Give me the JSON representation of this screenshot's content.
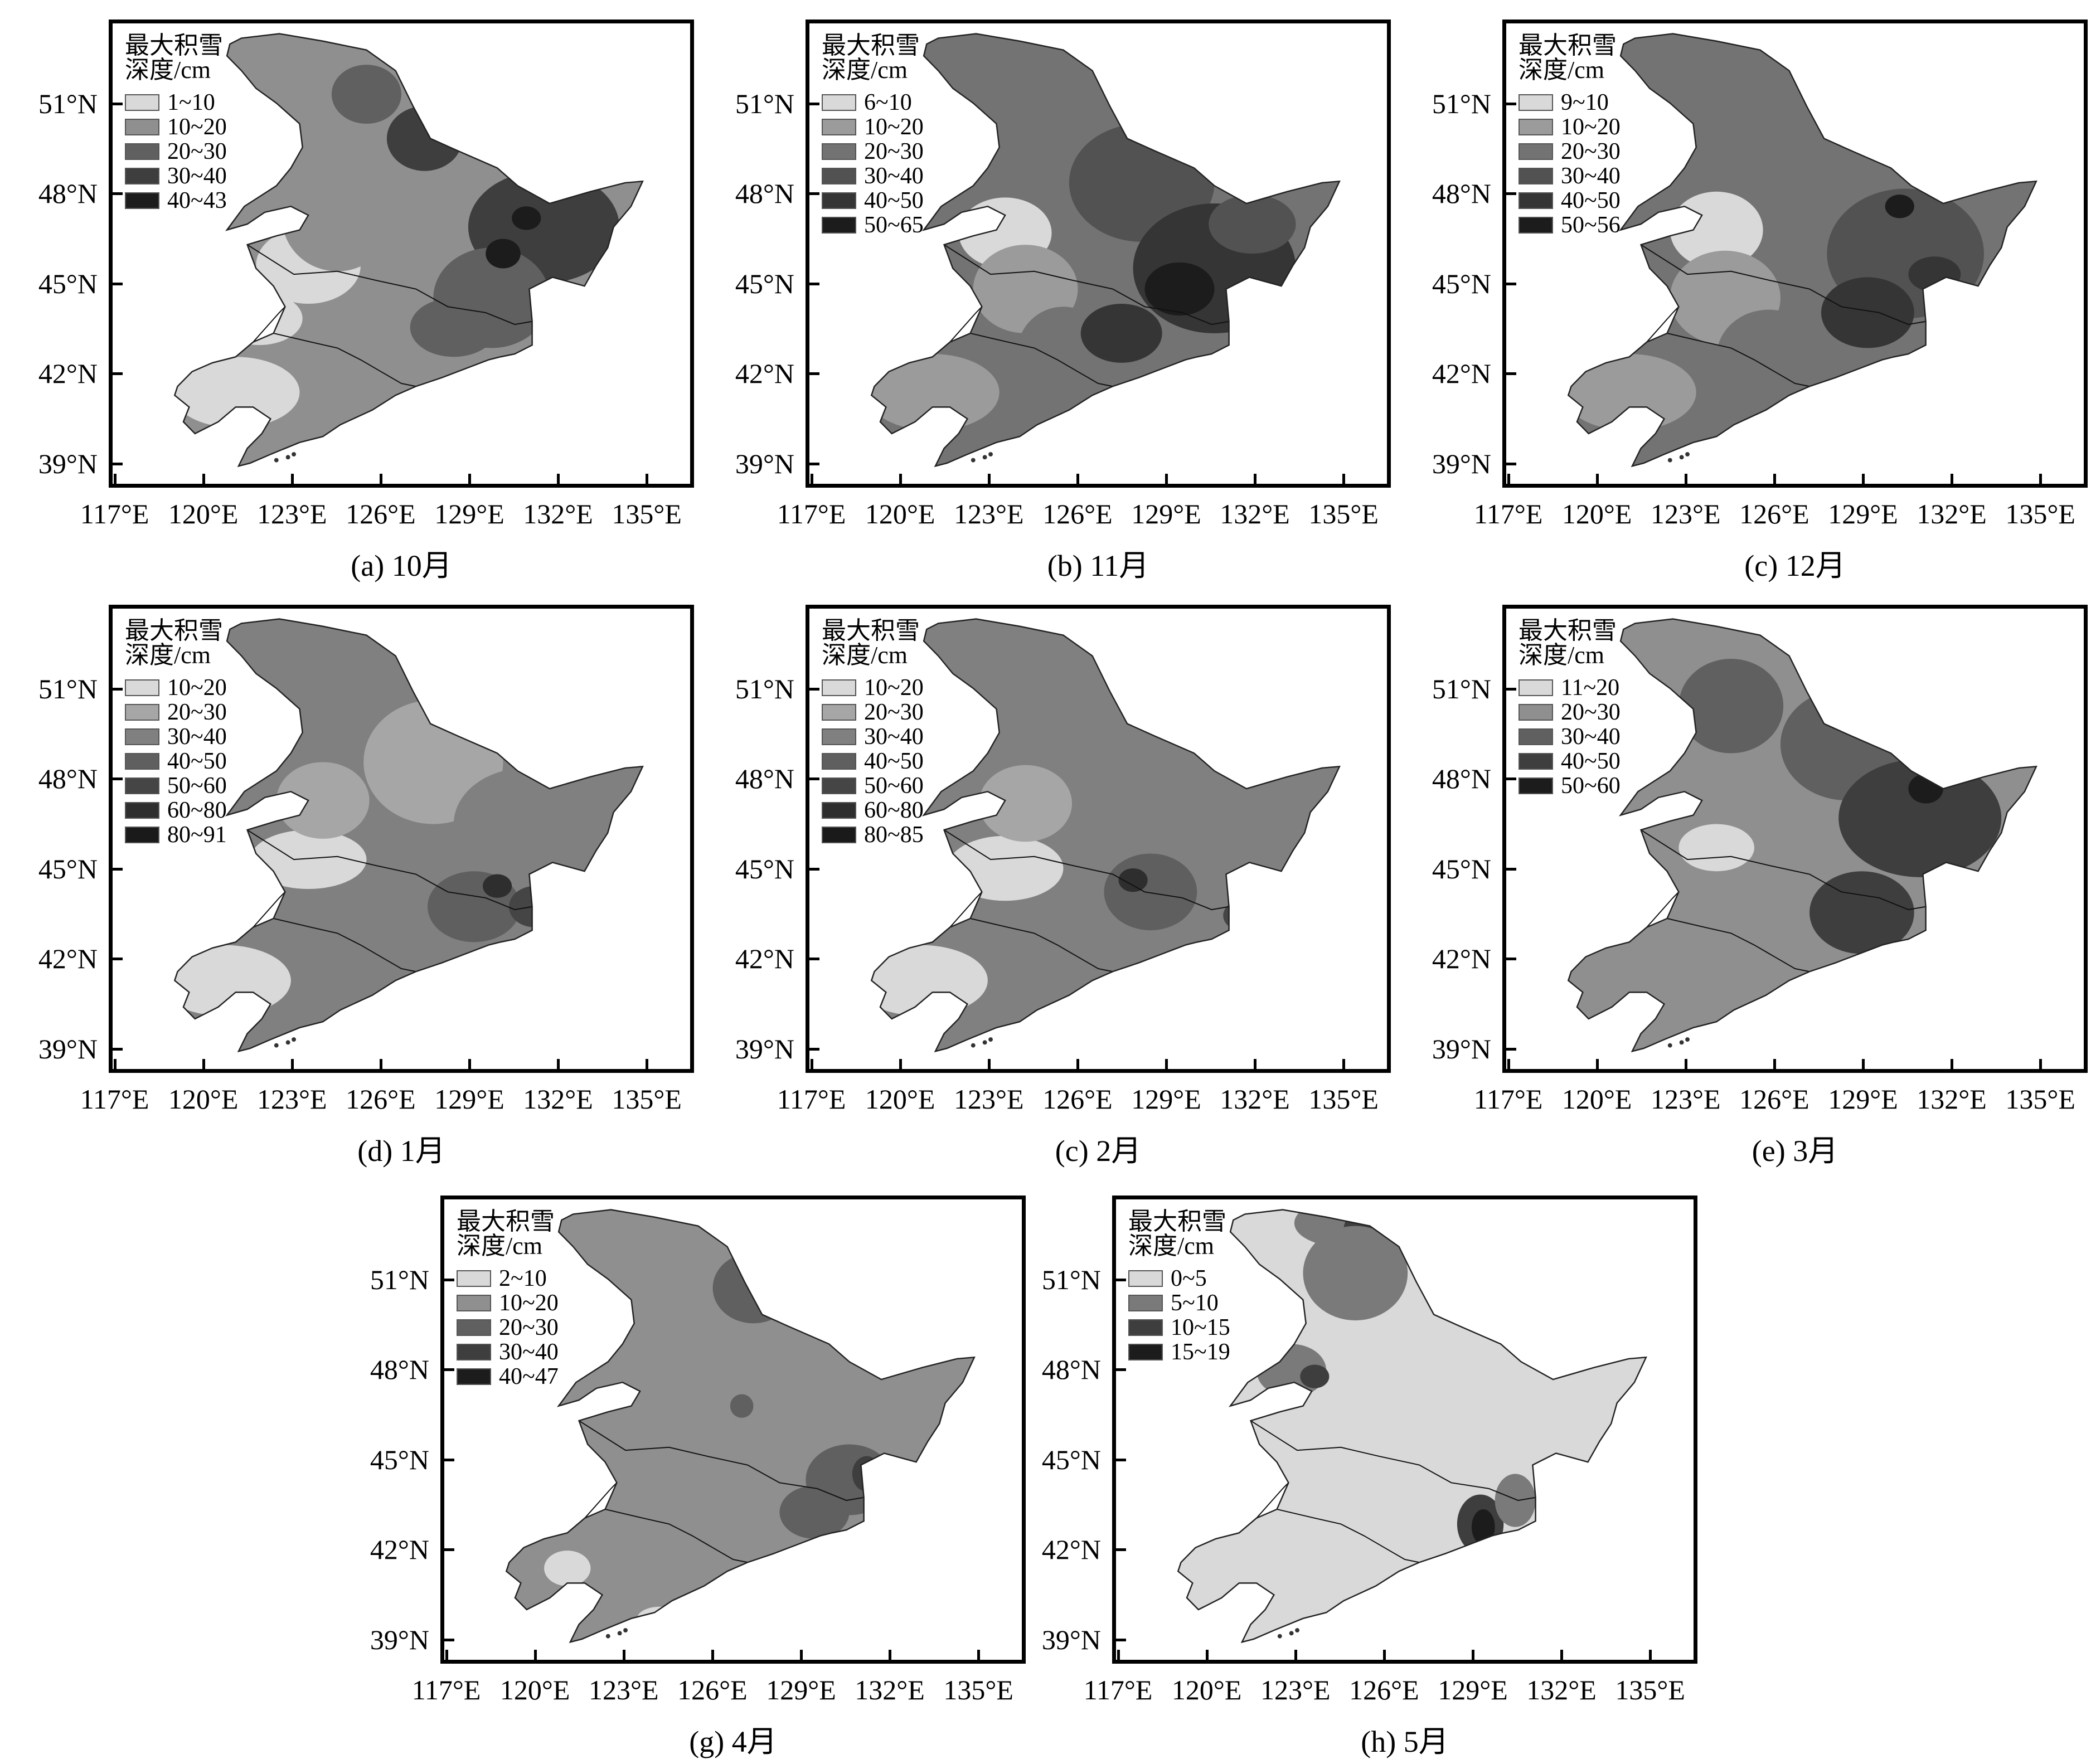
{
  "y_ticks": [
    "51°N",
    "48°N",
    "45°N",
    "42°N",
    "39°N"
  ],
  "x_ticks": [
    "117°E",
    "120°E",
    "123°E",
    "126°E",
    "129°E",
    "132°E",
    "135°E"
  ],
  "legend_title_line1": "最大积雪",
  "legend_title_line2": "深度/cm",
  "panels": [
    {
      "caption": "(a) 10月",
      "legend": [
        {
          "label": "1~10",
          "color": "#d9d9d9"
        },
        {
          "label": "10~20",
          "color": "#8f8f8f"
        },
        {
          "label": "20~30",
          "color": "#606060"
        },
        {
          "label": "30~40",
          "color": "#3e3e3e"
        },
        {
          "label": "40~43",
          "color": "#1c1c1c"
        }
      ]
    },
    {
      "caption": "(b) 11月",
      "legend": [
        {
          "label": "6~10",
          "color": "#d9d9d9"
        },
        {
          "label": "10~20",
          "color": "#9b9b9b"
        },
        {
          "label": "20~30",
          "color": "#737373"
        },
        {
          "label": "30~40",
          "color": "#525252"
        },
        {
          "label": "40~50",
          "color": "#353535"
        },
        {
          "label": "50~65",
          "color": "#1c1c1c"
        }
      ]
    },
    {
      "caption": "(c) 12月",
      "legend": [
        {
          "label": "9~10",
          "color": "#d9d9d9"
        },
        {
          "label": "10~20",
          "color": "#9b9b9b"
        },
        {
          "label": "20~30",
          "color": "#737373"
        },
        {
          "label": "30~40",
          "color": "#525252"
        },
        {
          "label": "40~50",
          "color": "#353535"
        },
        {
          "label": "50~56",
          "color": "#1c1c1c"
        }
      ]
    },
    {
      "caption": "(d) 1月",
      "legend": [
        {
          "label": "10~20",
          "color": "#d9d9d9"
        },
        {
          "label": "20~30",
          "color": "#a6a6a6"
        },
        {
          "label": "30~40",
          "color": "#808080"
        },
        {
          "label": "40~50",
          "color": "#5f5f5f"
        },
        {
          "label": "50~60",
          "color": "#454545"
        },
        {
          "label": "60~80",
          "color": "#2e2e2e"
        },
        {
          "label": "80~91",
          "color": "#1a1a1a"
        }
      ]
    },
    {
      "caption": "(c) 2月",
      "legend": [
        {
          "label": "10~20",
          "color": "#d9d9d9"
        },
        {
          "label": "20~30",
          "color": "#a6a6a6"
        },
        {
          "label": "30~40",
          "color": "#808080"
        },
        {
          "label": "40~50",
          "color": "#5f5f5f"
        },
        {
          "label": "50~60",
          "color": "#454545"
        },
        {
          "label": "60~80",
          "color": "#2e2e2e"
        },
        {
          "label": "80~85",
          "color": "#1a1a1a"
        }
      ]
    },
    {
      "caption": "(e) 3月",
      "legend": [
        {
          "label": "11~20",
          "color": "#d9d9d9"
        },
        {
          "label": "20~30",
          "color": "#8f8f8f"
        },
        {
          "label": "30~40",
          "color": "#606060"
        },
        {
          "label": "40~50",
          "color": "#3e3e3e"
        },
        {
          "label": "50~60",
          "color": "#1c1c1c"
        }
      ]
    },
    {
      "caption": "(g) 4月",
      "legend": [
        {
          "label": "2~10",
          "color": "#d9d9d9"
        },
        {
          "label": "10~20",
          "color": "#8f8f8f"
        },
        {
          "label": "20~30",
          "color": "#606060"
        },
        {
          "label": "30~40",
          "color": "#3e3e3e"
        },
        {
          "label": "40~47",
          "color": "#1c1c1c"
        }
      ]
    },
    {
      "caption": "(h) 5月",
      "legend": [
        {
          "label": "0~5",
          "color": "#d9d9d9"
        },
        {
          "label": "5~10",
          "color": "#7a7a7a"
        },
        {
          "label": "10~15",
          "color": "#3e3e3e"
        },
        {
          "label": "15~19",
          "color": "#1c1c1c"
        }
      ]
    }
  ]
}
